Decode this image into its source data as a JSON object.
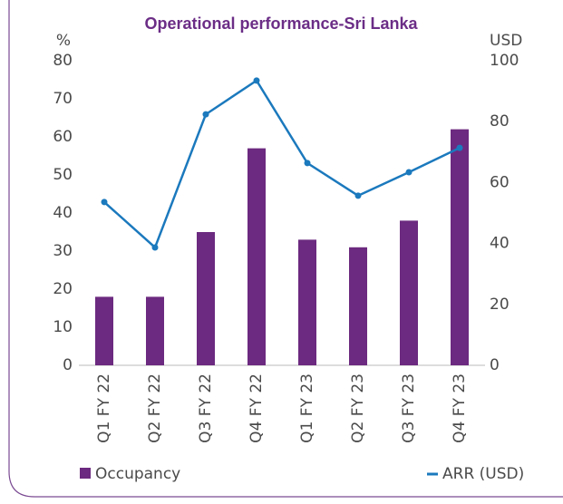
{
  "chart_data": {
    "type": "bar_line",
    "title": "Operational performance-Sri Lanka",
    "y_label": "%",
    "y2_label": "USD",
    "categories": [
      "Q1 FY 22",
      "Q2 FY 22",
      "Q3 FY 22",
      "Q4 FY 22",
      "Q1 FY 23",
      "Q2 FY 23",
      "Q3 FY 23",
      "Q4 FY 23"
    ],
    "series": [
      {
        "name": "Occupancy",
        "type": "bar",
        "color": "#6c2a80",
        "values": [
          18,
          18,
          35,
          57,
          33,
          31,
          38,
          62
        ]
      },
      {
        "name": "ARR (USD)",
        "type": "line",
        "axis": "y2",
        "color": "#1b79bd",
        "values": [
          53.6,
          38.7,
          82.4,
          93.5,
          66.4,
          55.7,
          63.4,
          71.4
        ]
      }
    ],
    "ylim": [
      0,
      80
    ],
    "yticks": [
      0,
      10,
      20,
      30,
      40,
      50,
      60,
      70,
      80
    ],
    "y2lim": [
      0,
      100
    ],
    "y2ticks": [
      0,
      20,
      40,
      60,
      80,
      100
    ],
    "legend": "bottom"
  }
}
